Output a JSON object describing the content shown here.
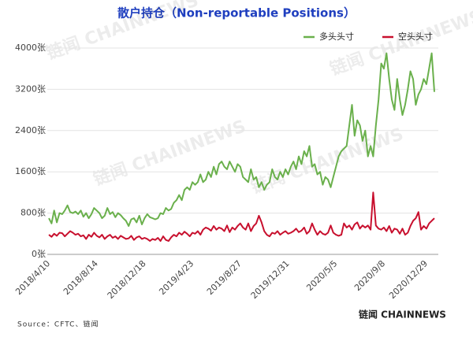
{
  "chart_data": {
    "type": "line",
    "title": "散户持仓（Non-reportable Positions）",
    "source": "Source：CFTC、链闻",
    "watermark": "链闻 CHAINNEWS",
    "categories": [
      "2018/4/10",
      null,
      null,
      null,
      null,
      null,
      null,
      null,
      null,
      null,
      null,
      null,
      null,
      null,
      null,
      null,
      null,
      null,
      "2018/8/14",
      null,
      null,
      null,
      null,
      null,
      null,
      null,
      null,
      null,
      null,
      null,
      null,
      null,
      null,
      null,
      null,
      null,
      "2018/12/18",
      null,
      null,
      null,
      null,
      null,
      null,
      null,
      null,
      null,
      null,
      null,
      null,
      null,
      null,
      null,
      null,
      null,
      "2019/4/23",
      null,
      null,
      null,
      null,
      null,
      null,
      null,
      null,
      null,
      null,
      null,
      null,
      null,
      null,
      null,
      null,
      null,
      "2019/8/27",
      null,
      null,
      null,
      null,
      null,
      null,
      null,
      null,
      null,
      null,
      null,
      null,
      null,
      null,
      null,
      null,
      null,
      "2019/12/31",
      null,
      null,
      null,
      null,
      null,
      null,
      null,
      null,
      null,
      null,
      null,
      null,
      null,
      null,
      null,
      null,
      null,
      "2020/5/5",
      null,
      null,
      null,
      null,
      null,
      null,
      null,
      null,
      null,
      null,
      null,
      null,
      null,
      null,
      null,
      null,
      null,
      "2020/9/8",
      null,
      null,
      null,
      null,
      null,
      null,
      null,
      null,
      null,
      null,
      null,
      null,
      null,
      null,
      null,
      "2020/12/29",
      null,
      null,
      null
    ],
    "series": [
      {
        "name": "多头头寸",
        "color": "#6ab04c",
        "values": [
          700,
          600,
          850,
          620,
          800,
          780,
          850,
          950,
          820,
          800,
          830,
          780,
          850,
          730,
          800,
          700,
          780,
          900,
          850,
          800,
          700,
          750,
          900,
          780,
          820,
          720,
          800,
          760,
          700,
          650,
          550,
          680,
          700,
          620,
          750,
          580,
          700,
          780,
          720,
          700,
          680,
          700,
          800,
          780,
          900,
          850,
          880,
          1000,
          1050,
          1150,
          1050,
          1250,
          1300,
          1250,
          1400,
          1350,
          1400,
          1550,
          1400,
          1450,
          1600,
          1500,
          1700,
          1550,
          1750,
          1800,
          1700,
          1650,
          1800,
          1700,
          1600,
          1750,
          1700,
          1500,
          1450,
          1400,
          1650,
          1450,
          1500,
          1300,
          1400,
          1250,
          1350,
          1400,
          1650,
          1500,
          1450,
          1600,
          1500,
          1650,
          1550,
          1700,
          1800,
          1650,
          1900,
          1750,
          2000,
          1900,
          2100,
          1700,
          1750,
          1550,
          1600,
          1350,
          1500,
          1450,
          1300,
          1500,
          1700,
          1900,
          2000,
          2050,
          2100,
          2500,
          2900,
          2300,
          2600,
          2500,
          2200,
          2400,
          1900,
          2100,
          1900,
          2500,
          3000,
          3700,
          3600,
          3900,
          3400,
          3000,
          2800,
          3400,
          3000,
          2700,
          2900,
          3200,
          3550,
          3400,
          2900,
          3100,
          3200,
          3400,
          3300,
          3600,
          3900,
          3150
        ]
      },
      {
        "name": "空头头寸",
        "color": "#c8102e",
        "values": [
          380,
          340,
          400,
          360,
          420,
          410,
          350,
          400,
          450,
          420,
          380,
          400,
          350,
          370,
          300,
          380,
          340,
          420,
          360,
          330,
          380,
          300,
          350,
          380,
          320,
          350,
          300,
          360,
          330,
          300,
          310,
          360,
          280,
          330,
          350,
          300,
          320,
          300,
          260,
          300,
          280,
          320,
          260,
          350,
          280,
          260,
          330,
          380,
          350,
          420,
          380,
          440,
          400,
          350,
          420,
          400,
          450,
          380,
          480,
          520,
          500,
          460,
          550,
          480,
          520,
          500,
          450,
          560,
          430,
          520,
          480,
          550,
          600,
          520,
          480,
          600,
          450,
          550,
          600,
          750,
          620,
          450,
          380,
          350,
          420,
          400,
          450,
          380,
          420,
          450,
          400,
          420,
          450,
          500,
          430,
          460,
          520,
          400,
          450,
          600,
          480,
          380,
          450,
          400,
          380,
          420,
          560,
          420,
          380,
          360,
          380,
          600,
          520,
          560,
          480,
          580,
          620,
          500,
          560,
          520,
          560,
          480,
          1200,
          560,
          500,
          480,
          520,
          450,
          550,
          420,
          500,
          480,
          400,
          500,
          380,
          420,
          550,
          650,
          700,
          820,
          480,
          550,
          500,
          600,
          650,
          700
        ]
      }
    ],
    "ylim": [
      0,
      4000
    ],
    "yticks": [
      {
        "value": 0,
        "label": "0张"
      },
      {
        "value": 800,
        "label": "800张"
      },
      {
        "value": 1600,
        "label": "1600张"
      },
      {
        "value": 2400,
        "label": "2400张"
      },
      {
        "value": 3200,
        "label": "3200张"
      },
      {
        "value": 4000,
        "label": "4000张"
      }
    ],
    "grid": true,
    "legend": "top-right"
  }
}
